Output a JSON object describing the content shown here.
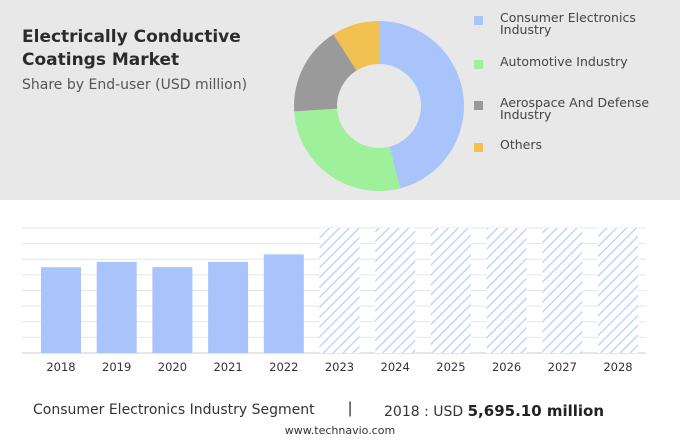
{
  "header": {
    "title": "Electrically Conductive Coatings Market",
    "subtitle": "Share by End-user (USD million)"
  },
  "colors": {
    "consumer": "#a8c4fa",
    "automotive": "#9ef09a",
    "aerospace": "#9a9a9a",
    "others": "#f0c050",
    "bar": "#a8c4fa",
    "forecast_hatch": "#c4d5f8"
  },
  "chart_data": [
    {
      "type": "pie",
      "subtype": "donut",
      "labels": [
        "Consumer Electronics Industry",
        "Automotive Industry",
        "Aerospace And Defense Industry",
        "Others"
      ],
      "values": [
        46,
        28,
        17,
        9
      ],
      "legend_position": "right"
    },
    {
      "type": "bar",
      "categories": [
        "2018",
        "2019",
        "2020",
        "2021",
        "2022",
        "2023",
        "2024",
        "2025",
        "2026",
        "2027",
        "2028"
      ],
      "values": [
        5695.1,
        6050,
        5700,
        6050,
        6550,
        null,
        null,
        null,
        null,
        null,
        null
      ],
      "forecast_categories": [
        "2023",
        "2024",
        "2025",
        "2026",
        "2027",
        "2028"
      ],
      "ylim": [
        0,
        8300
      ],
      "grid": true
    }
  ],
  "footer": {
    "segment": "Consumer Electronics Industry Segment",
    "separator": "|",
    "year_label": "2018 : USD",
    "value": "5,695.10 million"
  },
  "source": "www.technavio.com"
}
